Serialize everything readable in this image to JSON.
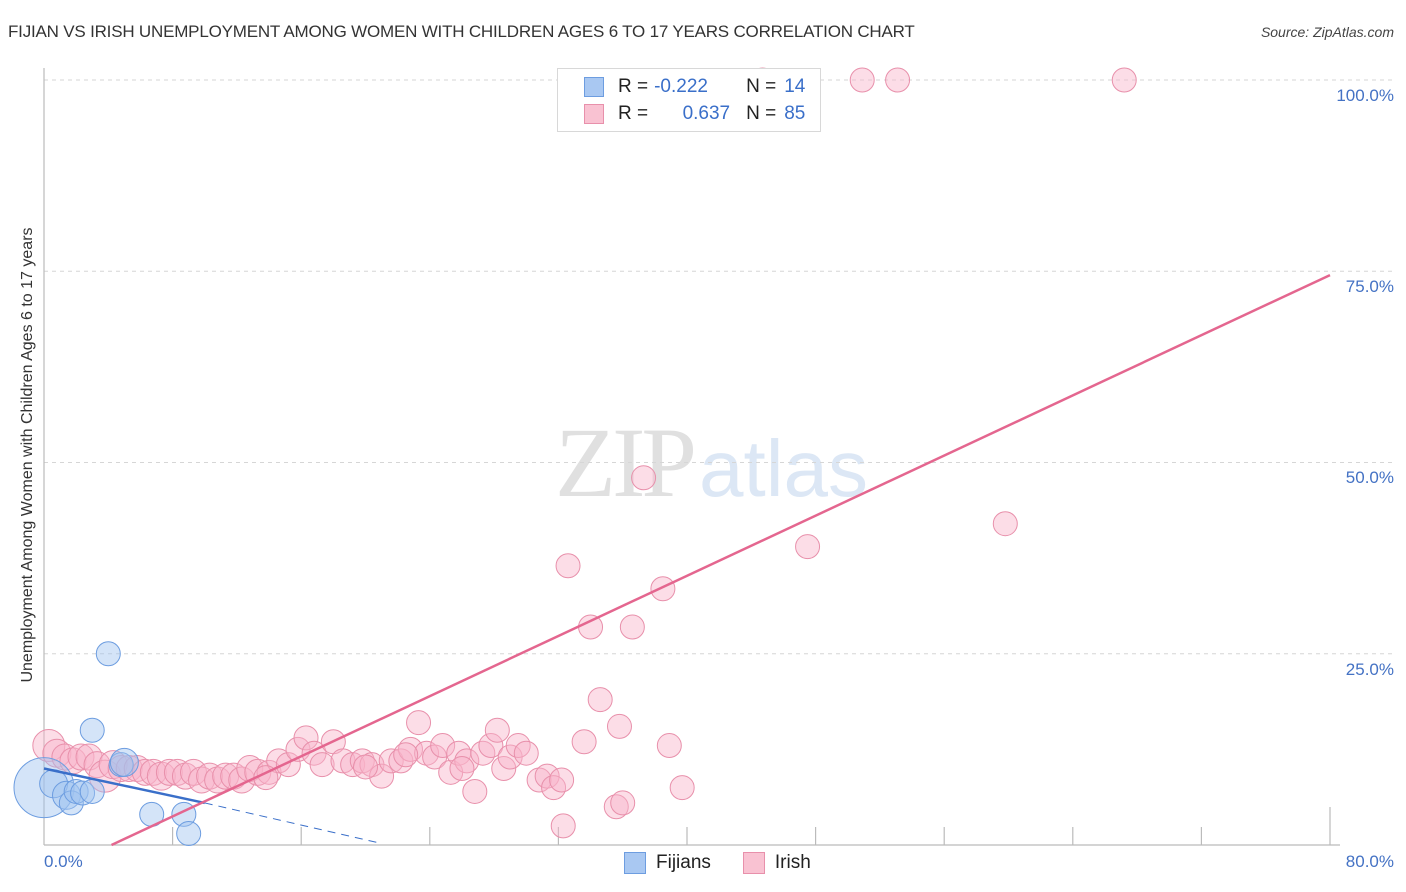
{
  "header": {
    "title": "FIJIAN VS IRISH UNEMPLOYMENT AMONG WOMEN WITH CHILDREN AGES 6 TO 17 YEARS CORRELATION CHART",
    "source": "Source: ZipAtlas.com"
  },
  "watermark": {
    "zip": "ZIP",
    "atlas": "atlas"
  },
  "legend": {
    "rows": [
      {
        "r_label": "R =",
        "r_value": "-0.222",
        "n_label": "N =",
        "n_value": "14",
        "color": "#a9c8f2",
        "border": "#6d9de0"
      },
      {
        "r_label": "R =",
        "r_value": "0.637",
        "n_label": "N =",
        "n_value": "85",
        "color": "#f9c2d2",
        "border": "#e890ab"
      }
    ]
  },
  "bottom_legend": {
    "items": [
      {
        "label": "Fijians",
        "color": "#a9c8f2",
        "border": "#6d9de0"
      },
      {
        "label": "Irish",
        "color": "#f9c2d2",
        "border": "#e890ab"
      }
    ]
  },
  "axes": {
    "ylabel": "Unemployment Among Women with Children Ages 6 to 17 years",
    "yticks": [
      "100.0%",
      "75.0%",
      "50.0%",
      "25.0%"
    ],
    "xticks": {
      "left": "0.0%",
      "right": "80.0%"
    }
  },
  "chart_data": {
    "type": "scatter",
    "title": "FIJIAN VS IRISH UNEMPLOYMENT AMONG WOMEN WITH CHILDREN AGES 6 TO 17 YEARS CORRELATION CHART",
    "xlabel": "",
    "ylabel": "Unemployment Among Women with Children Ages 6 to 17 years",
    "xlim": [
      0,
      80
    ],
    "ylim": [
      0,
      100
    ],
    "x_tick_labels": [
      "0.0%",
      "80.0%"
    ],
    "y_tick_labels": [
      "25.0%",
      "50.0%",
      "75.0%",
      "100.0%"
    ],
    "grid": "horizontal dashed at 25/50/75/100",
    "legend_position": "top-center (stats) and bottom-center (series)",
    "series": [
      {
        "name": "Fijians",
        "color": "#6d9de0",
        "R": -0.222,
        "N": 14,
        "points": [
          [
            0.0,
            7.5,
            30
          ],
          [
            0.6,
            8.0,
            14
          ],
          [
            1.4,
            6.5,
            14
          ],
          [
            1.7,
            5.5,
            12
          ],
          [
            2.0,
            7.0,
            12
          ],
          [
            2.4,
            6.8,
            12
          ],
          [
            3.0,
            7.0,
            12
          ],
          [
            3.0,
            15.0,
            12
          ],
          [
            4.0,
            25.0,
            12
          ],
          [
            4.8,
            10.5,
            12
          ],
          [
            5.0,
            10.8,
            14
          ],
          [
            6.7,
            4.0,
            12
          ],
          [
            8.7,
            4.0,
            12
          ],
          [
            9.0,
            1.5,
            12
          ]
        ],
        "trendline": {
          "x": [
            0,
            10
          ],
          "y": [
            10.0,
            5.5
          ],
          "dashed_extension": {
            "x": [
              10,
              21
            ],
            "y": [
              5.5,
              0.2
            ]
          }
        }
      },
      {
        "name": "Irish",
        "color": "#e890ab",
        "R": 0.637,
        "N": 85,
        "points": [
          [
            0.3,
            13.0,
            16
          ],
          [
            0.8,
            12.0,
            14
          ],
          [
            1.3,
            11.5,
            13
          ],
          [
            1.8,
            11.0,
            13
          ],
          [
            2.3,
            11.5,
            13
          ],
          [
            2.8,
            11.5,
            13
          ],
          [
            3.3,
            10.5,
            13
          ],
          [
            3.8,
            9.0,
            16
          ],
          [
            4.3,
            10.5,
            14
          ],
          [
            4.8,
            10.0,
            13
          ],
          [
            5.3,
            10.0,
            13
          ],
          [
            5.8,
            10.0,
            13
          ],
          [
            6.3,
            9.5,
            13
          ],
          [
            6.8,
            9.5,
            13
          ],
          [
            7.3,
            9.0,
            14
          ],
          [
            7.8,
            9.5,
            13
          ],
          [
            8.3,
            9.5,
            13
          ],
          [
            8.8,
            9.0,
            13
          ],
          [
            9.3,
            9.5,
            13
          ],
          [
            9.8,
            8.5,
            13
          ],
          [
            10.3,
            9.0,
            13
          ],
          [
            10.8,
            8.5,
            13
          ],
          [
            11.3,
            9.0,
            13
          ],
          [
            11.8,
            9.0,
            13
          ],
          [
            12.3,
            8.5,
            13
          ],
          [
            12.8,
            10.0,
            13
          ],
          [
            13.3,
            9.5,
            13
          ],
          [
            14.0,
            9.5,
            12
          ],
          [
            14.6,
            11.0,
            12
          ],
          [
            15.2,
            10.5,
            12
          ],
          [
            15.8,
            12.5,
            12
          ],
          [
            16.3,
            14.0,
            12
          ],
          [
            16.8,
            12.0,
            12
          ],
          [
            17.3,
            10.5,
            12
          ],
          [
            18.0,
            13.5,
            12
          ],
          [
            18.6,
            11.0,
            12
          ],
          [
            19.2,
            10.5,
            12
          ],
          [
            19.8,
            11.0,
            12
          ],
          [
            20.4,
            10.5,
            12
          ],
          [
            21.0,
            9.0,
            12
          ],
          [
            21.6,
            11.0,
            12
          ],
          [
            22.2,
            11.0,
            12
          ],
          [
            22.8,
            12.5,
            12
          ],
          [
            23.3,
            16.0,
            12
          ],
          [
            23.8,
            12.0,
            12
          ],
          [
            24.3,
            11.5,
            12
          ],
          [
            24.8,
            13.0,
            12
          ],
          [
            25.3,
            9.5,
            12
          ],
          [
            25.8,
            12.0,
            12
          ],
          [
            26.3,
            11.0,
            12
          ],
          [
            26.8,
            7.0,
            12
          ],
          [
            27.3,
            12.0,
            12
          ],
          [
            27.8,
            13.0,
            12
          ],
          [
            28.2,
            15.0,
            12
          ],
          [
            28.6,
            10.0,
            12
          ],
          [
            29.0,
            11.5,
            12
          ],
          [
            29.5,
            13.0,
            12
          ],
          [
            30.0,
            12.0,
            12
          ],
          [
            30.8,
            8.5,
            12
          ],
          [
            31.3,
            9.0,
            12
          ],
          [
            31.7,
            7.5,
            12
          ],
          [
            32.2,
            8.5,
            12
          ],
          [
            32.3,
            2.5,
            12
          ],
          [
            32.6,
            36.5,
            12
          ],
          [
            33.6,
            13.5,
            12
          ],
          [
            34.0,
            28.5,
            12
          ],
          [
            34.6,
            19.0,
            12
          ],
          [
            35.6,
            5.0,
            12
          ],
          [
            35.8,
            15.5,
            12
          ],
          [
            36.0,
            5.5,
            12
          ],
          [
            36.6,
            28.5,
            12
          ],
          [
            37.3,
            48.0,
            12
          ],
          [
            38.5,
            33.5,
            12
          ],
          [
            38.9,
            13.0,
            12
          ],
          [
            39.7,
            7.5,
            12
          ],
          [
            44.7,
            100.0,
            12
          ],
          [
            47.5,
            39.0,
            12
          ],
          [
            50.9,
            100.0,
            12
          ],
          [
            53.1,
            100.0,
            12
          ],
          [
            59.8,
            42.0,
            12
          ],
          [
            67.2,
            100.0,
            12
          ],
          [
            26.0,
            10.0,
            12
          ],
          [
            13.8,
            8.8,
            12
          ],
          [
            20.0,
            10.2,
            12
          ],
          [
            22.5,
            11.8,
            12
          ]
        ],
        "trendline": {
          "x": [
            4.2,
            80
          ],
          "y": [
            0,
            74.5
          ]
        }
      }
    ]
  }
}
